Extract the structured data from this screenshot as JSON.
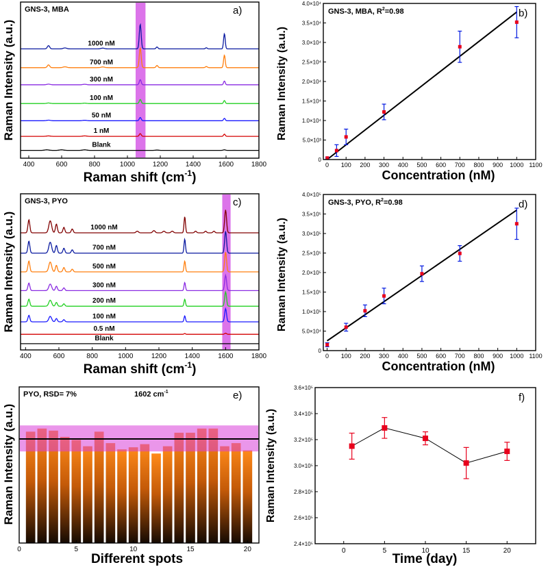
{
  "chart_data": [
    {
      "id": "a",
      "type": "line",
      "panel_label": "a)",
      "title": "GNS-3, MBA",
      "xlabel": "Raman shift (cm⁻¹)",
      "xlabel_base": "Raman shift (cm",
      "xlabel_sup": "-1",
      "ylabel": "Raman Intensity (a.u.)",
      "xlim": [
        350,
        1800
      ],
      "xticks": [
        400,
        600,
        800,
        1000,
        1200,
        1400,
        1600,
        1800
      ],
      "highlight_band": [
        1050,
        1110
      ],
      "series": [
        {
          "name": "Blank",
          "color": "#000000",
          "offset": 0.05,
          "peaks": [
            [
              510,
              0.1,
              18
            ],
            [
              600,
              0.1,
              18
            ],
            [
              740,
              0.1,
              18
            ],
            [
              1180,
              0.05,
              15
            ],
            [
              1590,
              0.1,
              10
            ]
          ]
        },
        {
          "name": "1 nM",
          "color": "#d40000",
          "offset": 0.14,
          "peaks": [
            [
              520,
              0.08,
              15
            ],
            [
              740,
              0.08,
              15
            ],
            [
              1078,
              0.5,
              8
            ],
            [
              1590,
              0.4,
              7
            ]
          ]
        },
        {
          "name": "50 nM",
          "color": "#1a1aff",
          "offset": 0.24,
          "peaks": [
            [
              520,
              0.1,
              15
            ],
            [
              740,
              0.08,
              15
            ],
            [
              1078,
              0.6,
              8
            ],
            [
              1590,
              0.45,
              7
            ]
          ]
        },
        {
          "name": "100 nM",
          "color": "#22d022",
          "offset": 0.35,
          "peaks": [
            [
              520,
              0.1,
              15
            ],
            [
              740,
              0.08,
              15
            ],
            [
              1078,
              0.75,
              8
            ],
            [
              1590,
              0.55,
              7
            ]
          ]
        },
        {
          "name": "300 nM",
          "color": "#8a2be2",
          "offset": 0.47,
          "peaks": [
            [
              520,
              0.12,
              15
            ],
            [
              740,
              0.1,
              15
            ],
            [
              1078,
              0.95,
              8
            ],
            [
              1590,
              0.7,
              7
            ]
          ]
        },
        {
          "name": "700 nM",
          "color": "#ff7f0e",
          "offset": 0.58,
          "peaks": [
            [
              520,
              0.5,
              10
            ],
            [
              620,
              0.15,
              15
            ],
            [
              850,
              0.12,
              15
            ],
            [
              1078,
              3.6,
              8
            ],
            [
              1180,
              0.4,
              8
            ],
            [
              1480,
              0.2,
              8
            ],
            [
              1590,
              2.3,
              7
            ]
          ]
        },
        {
          "name": "1000 nM",
          "color": "#0a1aa0",
          "offset": 0.7,
          "peaks": [
            [
              520,
              0.6,
              10
            ],
            [
              620,
              0.18,
              15
            ],
            [
              850,
              0.14,
              15
            ],
            [
              1078,
              4.5,
              8
            ],
            [
              1180,
              0.35,
              8
            ],
            [
              1480,
              0.2,
              8
            ],
            [
              1590,
              2.8,
              7
            ]
          ]
        }
      ]
    },
    {
      "id": "b",
      "type": "scatter",
      "panel_label": "b)",
      "title": "GNS-3, MBA, R²=0.98",
      "title_base": "GNS-3, MBA, R",
      "title_sup": "2",
      "title_tail": "=0.98",
      "xlabel": "Concentration (nM)",
      "ylabel": "Raman Intensity (a.u.)",
      "xlim": [
        -20,
        1100
      ],
      "ylim": [
        0,
        40000
      ],
      "xticks": [
        0,
        100,
        200,
        300,
        400,
        500,
        600,
        700,
        800,
        900,
        1000,
        1100
      ],
      "yticks": [
        0,
        5000,
        10000,
        15000,
        20000,
        25000,
        30000,
        35000,
        40000
      ],
      "ytick_labels": [
        "0",
        "5.0×10³",
        "1.0×10⁴",
        "1.5×10⁴",
        "2.0×10⁴",
        "2.5×10⁴",
        "3.0×10⁴",
        "3.5×10⁴",
        "4.0×10⁴"
      ],
      "x": [
        1,
        50,
        100,
        300,
        700,
        1000
      ],
      "y": [
        400,
        2300,
        5800,
        12200,
        28900,
        35200
      ],
      "error": [
        200,
        1500,
        2000,
        2000,
        4000,
        4000
      ],
      "fit": {
        "slope": 37.8,
        "intercept": 0,
        "x_range": [
          0,
          1000
        ]
      }
    },
    {
      "id": "c",
      "type": "line",
      "panel_label": "c)",
      "title": "GNS-3, PYO",
      "xlabel": "Raman shift (cm⁻¹)",
      "xlabel_base": "Raman shift (cm",
      "xlabel_sup": "-1",
      "ylabel": "Raman Intensity (a.u.)",
      "xlim": [
        370,
        1800
      ],
      "xticks": [
        400,
        600,
        800,
        1000,
        1200,
        1400,
        1600,
        1800
      ],
      "highlight_band": [
        1580,
        1630
      ],
      "series": [
        {
          "name": "Blank",
          "color": "#000000",
          "offset": 0.04,
          "peaks": []
        },
        {
          "name": "0.5 nM",
          "color": "#d40000",
          "offset": 0.1,
          "peaks": [
            [
              1355,
              0.15,
              6
            ],
            [
              1600,
              0.2,
              8
            ]
          ]
        },
        {
          "name": "100 nM",
          "color": "#1a1aff",
          "offset": 0.18,
          "peaks": [
            [
              420,
              1.2,
              8
            ],
            [
              548,
              1.0,
              12
            ],
            [
              585,
              0.6,
              8
            ],
            [
              630,
              0.4,
              8
            ],
            [
              1355,
              1.1,
              6
            ],
            [
              1600,
              2.4,
              8
            ]
          ]
        },
        {
          "name": "200 nM",
          "color": "#22d022",
          "offset": 0.28,
          "peaks": [
            [
              420,
              1.3,
              8
            ],
            [
              548,
              1.1,
              12
            ],
            [
              585,
              0.7,
              8
            ],
            [
              630,
              0.45,
              8
            ],
            [
              1355,
              1.3,
              6
            ],
            [
              1600,
              2.6,
              8
            ]
          ]
        },
        {
          "name": "300 nM",
          "color": "#8a2be2",
          "offset": 0.38,
          "peaks": [
            [
              420,
              1.4,
              8
            ],
            [
              548,
              1.2,
              12
            ],
            [
              585,
              0.8,
              8
            ],
            [
              630,
              0.5,
              8
            ],
            [
              1355,
              1.5,
              6
            ],
            [
              1600,
              2.8,
              8
            ]
          ]
        },
        {
          "name": "500 nM",
          "color": "#ff7f0e",
          "offset": 0.5,
          "peaks": [
            [
              420,
              2.0,
              8
            ],
            [
              548,
              1.8,
              12
            ],
            [
              585,
              1.2,
              8
            ],
            [
              630,
              0.8,
              8
            ],
            [
              680,
              0.5,
              8
            ],
            [
              1355,
              2.0,
              6
            ],
            [
              1600,
              3.6,
              8
            ]
          ]
        },
        {
          "name": "700 nM",
          "color": "#0a1aa0",
          "offset": 0.62,
          "peaks": [
            [
              420,
              2.2,
              8
            ],
            [
              548,
              2.0,
              12
            ],
            [
              585,
              1.4,
              8
            ],
            [
              630,
              0.9,
              8
            ],
            [
              680,
              0.6,
              8
            ],
            [
              1355,
              2.6,
              6
            ],
            [
              1600,
              4.0,
              8
            ]
          ]
        },
        {
          "name": "1000 nM",
          "color": "#800000",
          "offset": 0.75,
          "peaks": [
            [
              420,
              2.4,
              8
            ],
            [
              548,
              2.2,
              12
            ],
            [
              585,
              1.6,
              8
            ],
            [
              630,
              1.0,
              8
            ],
            [
              680,
              0.7,
              8
            ],
            [
              1070,
              0.3,
              10
            ],
            [
              1170,
              0.4,
              10
            ],
            [
              1230,
              0.3,
              10
            ],
            [
              1280,
              0.3,
              10
            ],
            [
              1355,
              3.0,
              6
            ],
            [
              1420,
              0.3,
              8
            ],
            [
              1480,
              0.3,
              8
            ],
            [
              1530,
              0.3,
              8
            ],
            [
              1600,
              4.2,
              8
            ]
          ]
        }
      ]
    },
    {
      "id": "d",
      "type": "scatter",
      "panel_label": "d)",
      "title": "GNS-3, PYO, R²=0.98",
      "title_base": "GNS-3, PYO, R",
      "title_sup": "2",
      "title_tail": "=0.98",
      "xlabel": "Concentration (nM)",
      "ylabel": "Raman Intensity (a.u.)",
      "xlim": [
        -20,
        1100
      ],
      "ylim": [
        0,
        400000
      ],
      "xticks": [
        0,
        100,
        200,
        300,
        400,
        500,
        600,
        700,
        800,
        900,
        1000,
        1100
      ],
      "yticks": [
        0,
        50000,
        100000,
        150000,
        200000,
        250000,
        300000,
        350000,
        400000
      ],
      "ytick_labels": [
        "0",
        "5.0×10⁴",
        "1.0×10⁵",
        "1.5×10⁵",
        "2.0×10⁵",
        "2.5×10⁵",
        "3.0×10⁵",
        "3.5×10⁵",
        "4.0×10⁵"
      ],
      "x": [
        0.5,
        100,
        200,
        300,
        500,
        700,
        1000
      ],
      "y": [
        15000,
        60000,
        102000,
        140000,
        197000,
        249000,
        325000
      ],
      "error": [
        5000,
        10000,
        15000,
        20000,
        20000,
        20000,
        40000
      ],
      "fit": {
        "slope": 335,
        "intercept": 25000,
        "x_range": [
          0,
          1000
        ]
      }
    },
    {
      "id": "e",
      "type": "bar",
      "panel_label": "e)",
      "title": "PYO, RSD= 7%",
      "annotation_base": "1602 cm",
      "annotation_sup": "-1",
      "xlabel": "Different spots",
      "ylabel": "Raman Intensity (a.u.)",
      "xlim": [
        0,
        21
      ],
      "xticks": [
        0,
        5,
        10,
        15,
        20
      ],
      "ylim": [
        0,
        1.5
      ],
      "mean_line": 1.0,
      "band": [
        0.88,
        1.13
      ],
      "categories": [
        1,
        2,
        3,
        4,
        5,
        6,
        7,
        8,
        9,
        10,
        11,
        12,
        13,
        14,
        15,
        16,
        17,
        18,
        19,
        20
      ],
      "values": [
        1.07,
        1.1,
        1.08,
        1.02,
        0.99,
        0.93,
        1.07,
        0.96,
        0.9,
        0.92,
        0.95,
        0.86,
        0.93,
        1.06,
        1.06,
        1.1,
        1.1,
        0.93,
        0.96,
        0.89
      ]
    },
    {
      "id": "f",
      "type": "line",
      "panel_label": "f)",
      "xlabel": "Time (day)",
      "ylabel": "Raman Intensity (a.u.)",
      "xlim": [
        -3.5,
        23.5
      ],
      "ylim": [
        240000,
        360000
      ],
      "xticks": [
        0,
        5,
        10,
        15,
        20
      ],
      "yticks": [
        240000,
        260000,
        280000,
        300000,
        320000,
        340000,
        360000
      ],
      "ytick_labels": [
        "2.4×10⁵",
        "2.6×10⁵",
        "2.8×10⁵",
        "3.0×10⁵",
        "3.2×10⁵",
        "3.4×10⁵",
        "3.6×10⁵"
      ],
      "x": [
        1,
        5,
        10,
        15,
        20
      ],
      "y": [
        315000,
        329000,
        321000,
        302000,
        311000
      ],
      "error": [
        10000,
        8000,
        5000,
        12000,
        7000
      ]
    }
  ],
  "colors": {
    "highlight": "#d65ce6",
    "marker": "#e8001c",
    "errorbar": "#0018e0",
    "bar_top": "#ff8a1a",
    "bar_bottom": "#1a0c02",
    "bar_band": "#d940d9",
    "mean_line": "#000000"
  }
}
